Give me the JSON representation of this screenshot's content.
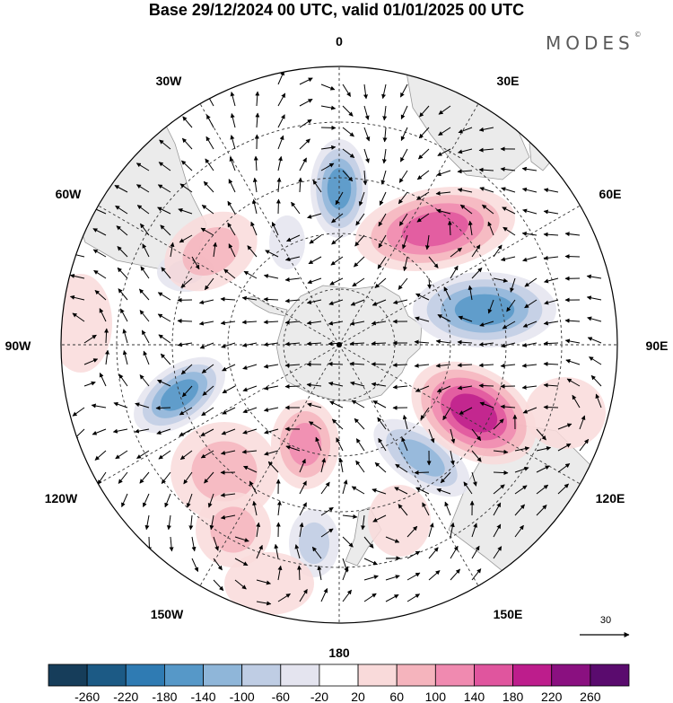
{
  "header": {
    "title": "Base 29/12/2024 00 UTC, valid 01/01/2025 00 UTC",
    "brand": "MODES",
    "brand_mark": "©"
  },
  "map": {
    "projection": "south-polar-stereographic",
    "longitude_labels": {
      "lon_0": "0",
      "lon_30e": "30E",
      "lon_60e": "60E",
      "lon_90e": "90E",
      "lon_120e": "120E",
      "lon_150e": "150E",
      "lon_180": "180",
      "lon_150w": "150W",
      "lon_120w": "120W",
      "lon_90w": "90W",
      "lon_60w": "60W",
      "lon_30w": "30W"
    },
    "land_color": "#ebebeb",
    "grid_color": "#333333"
  },
  "wind_reference": {
    "label": "30"
  },
  "colorbar": {
    "ticks": [
      "-260",
      "-220",
      "-180",
      "-140",
      "-100",
      "-60",
      "-20",
      "20",
      "60",
      "100",
      "140",
      "180",
      "220",
      "260"
    ],
    "colors": [
      "#163d5a",
      "#1c5a85",
      "#2f7bb3",
      "#5698c8",
      "#8fb6d9",
      "#bfcde4",
      "#e4e4ef",
      "#ffffff",
      "#f9dada",
      "#f5b4bd",
      "#f08ab0",
      "#e0559e",
      "#bd1d8c",
      "#8a1080",
      "#5a0b6e"
    ]
  }
}
